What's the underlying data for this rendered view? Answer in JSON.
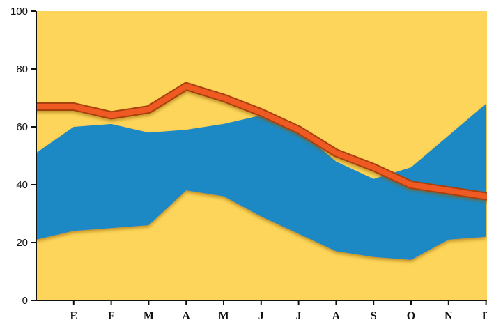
{
  "chart_data": {
    "type": "area",
    "categories": [
      "",
      "E",
      "F",
      "M",
      "A",
      "M",
      "J",
      "J",
      "A",
      "S",
      "O",
      "N",
      "D"
    ],
    "ylim": [
      0,
      100
    ],
    "yticks": [
      0,
      20,
      40,
      60,
      80,
      100
    ],
    "grid": false,
    "series": [
      {
        "role": "band-lower",
        "values": [
          21,
          24,
          25,
          26,
          38,
          36,
          29,
          23,
          17,
          15,
          14,
          21,
          22
        ]
      },
      {
        "role": "band-upper",
        "values": [
          51,
          60,
          61,
          58,
          59,
          61,
          64,
          59,
          48,
          42,
          46,
          57,
          68
        ]
      },
      {
        "role": "line",
        "values": [
          67,
          67,
          64,
          66,
          74,
          70,
          65,
          59,
          51,
          46,
          40,
          38,
          36
        ]
      }
    ],
    "colors": {
      "background": "#fcd55a",
      "band": "#1a89c4",
      "line": "#ee5a24",
      "line_edge": "#a8400f",
      "axis": "#111111"
    }
  }
}
